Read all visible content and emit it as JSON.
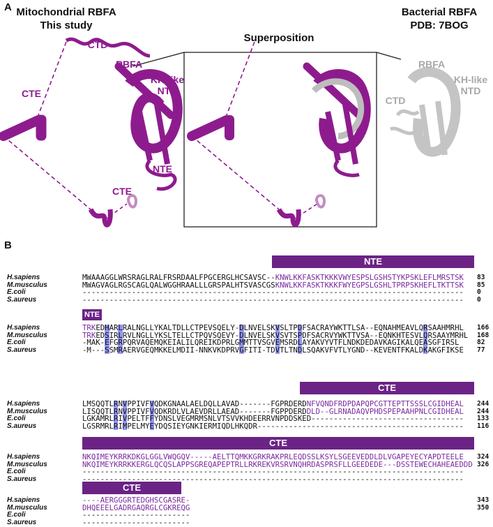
{
  "panel_a": {
    "label": "A",
    "left_title": "Mitochondrial RBFA",
    "left_subtitle": "This study",
    "center_title": "Superposition",
    "right_title": "Bacterial RBFA",
    "right_subtitle": "PDB: 7BOG",
    "left_labels": {
      "cte_top": "CTE",
      "ctd": "CTD",
      "rbfa": "RBFA",
      "kh": "KH-like",
      "ntd": "NTD",
      "cte_bottom": "CTE",
      "nte": "NTE"
    },
    "right_labels": {
      "rbfa": "RBFA",
      "kh": "KH-like",
      "ntd": "NTD",
      "ctd": "CTD"
    }
  },
  "panel_b": {
    "label": "B",
    "blocks": [
      {
        "label": "NTE",
        "rows": [
          {
            "name": "H.sapiens",
            "seq": [
              {
                "text": "MWAAAGGLWRSRAGLRALFRSRDAALFPGCERGLHCSAVSC--"
              },
              {
                "text": "KNWLKKFASKTKKKVWYESPSLGSHSTYKPSKLEFLMRSTSK",
                "color": "#7b2a9e"
              }
            ],
            "end": 83
          },
          {
            "name": "M.musculus",
            "seq": [
              {
                "text": "MWAGVAGLRGSCAGLQALWGGHRAALLLGRSPALHTSVASCGS"
              },
              {
                "text": "KNWLKKFASKTKKKFWYEGPSLGSHLTPRPSKHEFLTKTTSK",
                "color": "#7b2a9e"
              }
            ],
            "end": 85
          },
          {
            "name": "E.coli",
            "seq": [
              {
                "text": "-------------------------------------------------------------------------------------"
              }
            ],
            "end": 0
          },
          {
            "name": "S.aureus",
            "seq": [
              {
                "text": "-------------------------------------------------------------------------------------"
              }
            ],
            "end": 0
          }
        ]
      },
      {
        "label": "NTE",
        "rows": [
          {
            "name": "H.sapiens",
            "seq": [
              {
                "text": "TRK",
                "color": "#7b2a9e"
              },
              {
                "text": "EDHARLRALNGLLYKALTDLLCTPEVSQELY-DLNVELSKVSLTPDFSACRAYWKTTLSA--EQNAHMEAVLQRSAAHMRHL"
              }
            ],
            "end": 166
          },
          {
            "name": "M.musculus",
            "seq": [
              {
                "text": "TRK",
                "color": "#7b2a9e"
              },
              {
                "text": "EDSIRLRVLNGLLYKSLTELLCTPQVSQEVY-DLNVELSKVSVTSPDFSACRVYWKTTVSA--EQNKHTESVLQRSAAYMRHL"
              }
            ],
            "end": 168
          },
          {
            "name": "E.coli",
            "seq": [
              {
                "text": "-MAK-EFGRPQRVAQEMQKEIALILQREIKDPRLGMMTTVSGVEMSRDLAYAKVYVTFLNDKDEDAVKAGIKALQEASGFIRSL"
              }
            ],
            "end": 82
          },
          {
            "name": "S.aureus",
            "seq": [
              {
                "text": "-M---SSMRAERVGEQMKKELMDII-NNKVKDPRVGFITI-TDVTLTNDLSQAKVFVTLYGND--KEVENTFKALDKAKGFIKSE"
              }
            ],
            "end": 77
          }
        ]
      },
      {
        "label": "CTE",
        "rows": [
          {
            "name": "H.sapiens",
            "seq": [
              {
                "text": "LMSQQTLRNVPPIVFVQDKGNAALAELDQLLAVAD-------FGPRDERD"
              },
              {
                "text": "NFVQNDFRDPDAPQPCGTTEPTTSSSLCGIDHEAL",
                "color": "#7b2a9e"
              }
            ],
            "end": 244
          },
          {
            "name": "M.musculus",
            "seq": [
              {
                "text": "LISQQTLRNVPPIVFVQDKRDLVLAEVDRLLAEAD-------FGPPDERD"
              },
              {
                "text": "DLD--GLRNADAQVPHDSPEPAAHPNLCGIDHEAL",
                "color": "#7b2a9e"
              }
            ],
            "end": 244
          },
          {
            "name": "E.coli",
            "seq": [
              {
                "text": "LGKAMRLRIVPELTFFYDNSLVEGMRMSNLVTSVVKHDEERRVNPDDSKED----------------------------------"
              }
            ],
            "end": 133
          },
          {
            "name": "S.aureus",
            "seq": [
              {
                "text": "LGSRMRLRIMPELMYEYDQSIEYGNKIERMIQDLHKQDR----------------------------------------------"
              }
            ],
            "end": 116
          }
        ]
      },
      {
        "label": "CTE",
        "rows": [
          {
            "name": "H.sapiens",
            "seq": [
              {
                "text": "NKQIMEYKRRKDKGLGGLVWQGQV-----AELTTQMKKGRKRAKPRLEQDSSLKSYLSGEEVEDDLDLVGAPEYECYAPDTEELE",
                "color": "#7b2a9e"
              }
            ],
            "end": 324
          },
          {
            "name": "M.musculus",
            "seq": [
              {
                "text": "NKQIMEYKRRKKERGLQCQSLAPPSGREQAPEPTRLLRKREKVRSRVNQHRDASPRSFLLGEEDEDE---DSSTEWECHAHEAEDDD",
                "color": "#7b2a9e"
              }
            ],
            "end": 326
          },
          {
            "name": "E.coli",
            "seq": [
              {
                "text": "-------------------------------------------------------------------------------------"
              }
            ]
          },
          {
            "name": "S.aureus",
            "seq": [
              {
                "text": "-------------------------------------------------------------------------------------"
              }
            ]
          }
        ]
      },
      {
        "label": "CTE",
        "rows": [
          {
            "name": "H.sapiens",
            "seq": [
              {
                "text": "----AERGGGRTEDGHSCGASRE-",
                "color": "#7b2a9e"
              }
            ],
            "end": 343
          },
          {
            "name": "M.musculus",
            "seq": [
              {
                "text": "DHQEEELGADRGAQRGLCGKREQG",
                "color": "#7b2a9e"
              }
            ],
            "end": 350
          },
          {
            "name": "E.coli",
            "seq": [
              {
                "text": "------------------------"
              }
            ]
          },
          {
            "name": "S.aureus",
            "seq": [
              {
                "text": "------------------------"
              }
            ]
          }
        ]
      }
    ]
  }
}
